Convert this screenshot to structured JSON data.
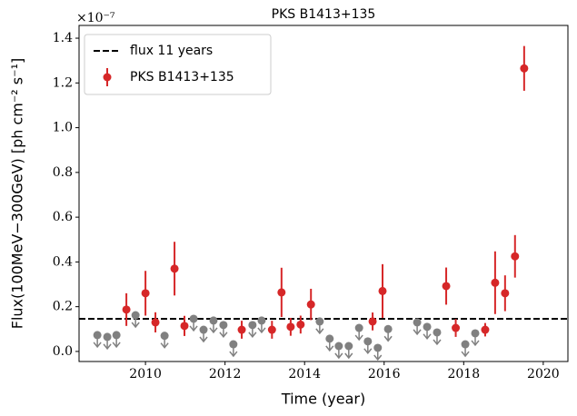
{
  "chart_data": {
    "type": "scatter",
    "title": "PKS B1413+135",
    "xlabel": "Time (year)",
    "ylabel": "Flux(100MeV−300GeV) [ph cm⁻² s⁻¹]",
    "y_offset_label": "×10⁻⁷",
    "xlim": [
      2008.33,
      2020.62
    ],
    "ylim": [
      -0.045,
      1.457
    ],
    "xticks": [
      2010,
      2012,
      2014,
      2016,
      2018,
      2020
    ],
    "yticks": [
      {
        "value": 0,
        "label": "0.0"
      },
      0.2,
      0.4,
      0.6,
      0.8,
      {
        "value": 1,
        "label": "1.0"
      },
      1.2,
      1.4
    ],
    "legend": "upper left",
    "reference": {
      "name": "flux 11 years",
      "value": 0.146,
      "color": "#000000"
    },
    "series": [
      {
        "name": "PKS B1413+135",
        "color": "#d62728",
        "x": [
          2009.52,
          2010.0,
          2010.25,
          2010.73,
          2010.98,
          2012.42,
          2013.18,
          2013.42,
          2013.65,
          2013.9,
          2014.16,
          2015.71,
          2015.96,
          2017.56,
          2017.8,
          2018.54,
          2018.79,
          2019.04,
          2019.29,
          2019.52
        ],
        "values": [
          0.187,
          0.26,
          0.13,
          0.37,
          0.114,
          0.097,
          0.097,
          0.264,
          0.11,
          0.12,
          0.21,
          0.134,
          0.27,
          0.292,
          0.105,
          0.097,
          0.307,
          0.26,
          0.425,
          1.265
        ],
        "errors": [
          0.073,
          0.1,
          0.045,
          0.12,
          0.045,
          0.04,
          0.04,
          0.11,
          0.04,
          0.04,
          0.07,
          0.04,
          0.12,
          0.083,
          0.04,
          0.03,
          0.14,
          0.08,
          0.095,
          0.1
        ]
      }
    ],
    "upper_limits": {
      "color": "#808080",
      "x": [
        2008.79,
        2009.04,
        2009.27,
        2009.75,
        2010.48,
        2011.21,
        2011.46,
        2011.71,
        2011.96,
        2012.21,
        2012.69,
        2012.92,
        2014.38,
        2014.63,
        2014.86,
        2015.11,
        2015.37,
        2015.59,
        2015.84,
        2016.1,
        2016.83,
        2017.08,
        2017.33,
        2018.04,
        2018.29
      ],
      "values": [
        0.073,
        0.065,
        0.073,
        0.162,
        0.07,
        0.146,
        0.097,
        0.138,
        0.118,
        0.032,
        0.118,
        0.138,
        0.134,
        0.057,
        0.024,
        0.024,
        0.105,
        0.045,
        0.016,
        0.1,
        0.13,
        0.11,
        0.085,
        0.032,
        0.081
      ]
    }
  }
}
